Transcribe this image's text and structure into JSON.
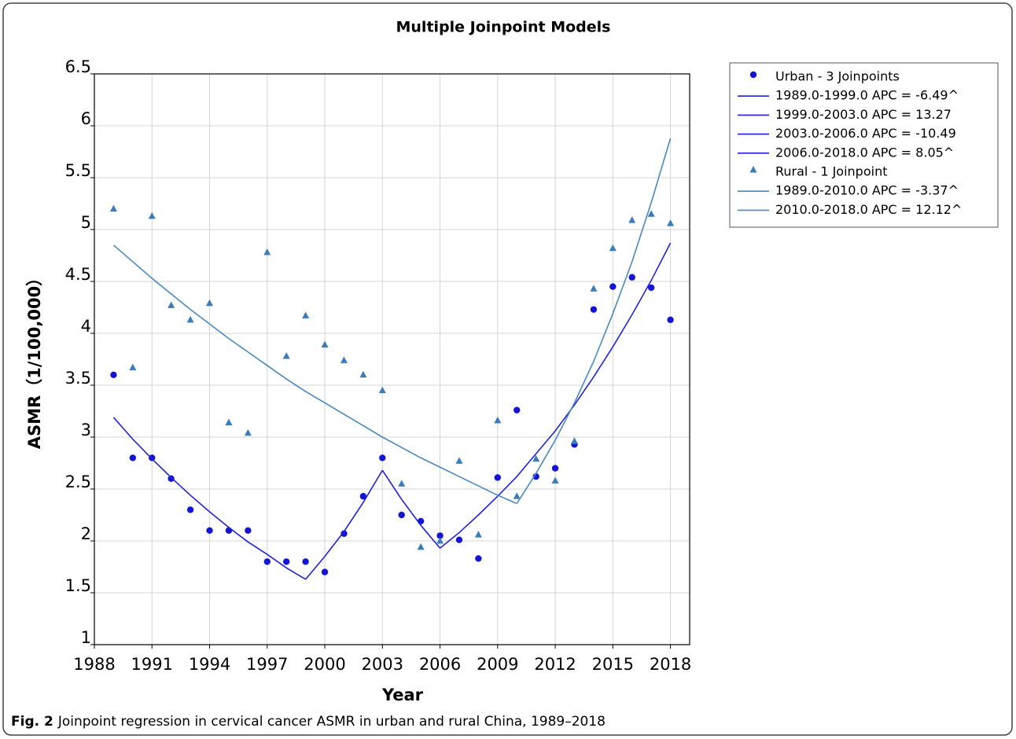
{
  "chart_data": {
    "type": "scatter",
    "title": "Multiple Joinpoint Models",
    "xlabel": "Year",
    "ylabel": "ASMR（1/100,000）",
    "caption_label": "Fig. 2",
    "caption": "Joinpoint regression in cervical cancer ASMR in urban and rural China, 1989–2018",
    "x": [
      1989,
      1990,
      1991,
      1992,
      1993,
      1994,
      1995,
      1996,
      1997,
      1998,
      1999,
      2000,
      2001,
      2002,
      2003,
      2004,
      2005,
      2006,
      2007,
      2008,
      2009,
      2010,
      2011,
      2012,
      2013,
      2014,
      2015,
      2016,
      2017,
      2018
    ],
    "xlim": [
      1988,
      2019
    ],
    "xticks": [
      1988,
      1991,
      1994,
      1997,
      2000,
      2003,
      2006,
      2009,
      2012,
      2015,
      2018
    ],
    "ylim": [
      1,
      6.5
    ],
    "yticks": [
      1,
      1.5,
      2,
      2.5,
      3,
      3.5,
      4,
      4.5,
      5,
      5.5,
      6,
      6.5
    ],
    "grid": true,
    "legend": "outside-right",
    "series": [
      {
        "name": "Urban - 3 Joinpoints",
        "marker": "circle",
        "color": "#1414d4",
        "values": [
          3.6,
          2.8,
          2.8,
          2.6,
          2.3,
          2.1,
          2.1,
          2.1,
          1.8,
          1.8,
          1.8,
          1.7,
          2.07,
          2.43,
          2.8,
          2.25,
          2.19,
          2.05,
          2.01,
          1.83,
          2.61,
          3.26,
          2.62,
          2.7,
          2.93,
          4.23,
          4.45,
          4.54,
          4.44,
          4.13
        ]
      },
      {
        "name": "1989.0-1999.0 APC = -6.49^",
        "marker": "line",
        "color": "#2020e0",
        "values": [
          3.19,
          2.98,
          2.79,
          2.61,
          2.44,
          2.28,
          2.13,
          1.99,
          1.87,
          1.74,
          1.63,
          null,
          null,
          null,
          null,
          null,
          null,
          null,
          null,
          null,
          null,
          null,
          null,
          null,
          null,
          null,
          null,
          null,
          null,
          null
        ]
      },
      {
        "name": "1999.0-2003.0 APC = 13.27",
        "marker": "line",
        "color": "#2020e0",
        "values": [
          null,
          null,
          null,
          null,
          null,
          null,
          null,
          null,
          null,
          null,
          1.63,
          1.85,
          2.09,
          2.37,
          2.68,
          null,
          null,
          null,
          null,
          null,
          null,
          null,
          null,
          null,
          null,
          null,
          null,
          null,
          null,
          null
        ]
      },
      {
        "name": "2003.0-2006.0 APC = -10.49",
        "marker": "line",
        "color": "#2020e0",
        "values": [
          null,
          null,
          null,
          null,
          null,
          null,
          null,
          null,
          null,
          null,
          null,
          null,
          null,
          null,
          2.68,
          2.4,
          2.15,
          1.93,
          null,
          null,
          null,
          null,
          null,
          null,
          null,
          null,
          null,
          null,
          null,
          null
        ]
      },
      {
        "name": "2006.0-2018.0 APC = 8.05^",
        "marker": "line",
        "color": "#2020e0",
        "values": [
          null,
          null,
          null,
          null,
          null,
          null,
          null,
          null,
          null,
          null,
          null,
          null,
          null,
          null,
          null,
          null,
          null,
          1.93,
          2.08,
          2.25,
          2.43,
          2.62,
          2.84,
          3.06,
          3.31,
          3.58,
          3.87,
          4.18,
          4.51,
          4.87
        ]
      },
      {
        "name": "Rural - 1 Joinpoint",
        "marker": "triangle",
        "color": "#3c7cb8",
        "values": [
          5.2,
          3.67,
          5.13,
          4.27,
          4.13,
          4.29,
          3.14,
          3.04,
          4.78,
          3.78,
          4.17,
          3.89,
          3.74,
          3.6,
          3.45,
          2.55,
          1.94,
          2.0,
          2.77,
          2.06,
          3.16,
          2.43,
          2.79,
          2.58,
          2.96,
          4.43,
          4.82,
          5.09,
          5.15,
          5.06
        ]
      },
      {
        "name": "1989.0-2010.0 APC = -3.37^",
        "marker": "line",
        "color": "#4a88c0",
        "values": [
          4.85,
          4.69,
          4.53,
          4.38,
          4.23,
          4.09,
          3.95,
          3.82,
          3.69,
          3.56,
          3.44,
          3.33,
          3.22,
          3.11,
          3.0,
          2.9,
          2.8,
          2.71,
          2.62,
          2.53,
          2.44,
          2.36,
          null,
          null,
          null,
          null,
          null,
          null,
          null,
          null
        ]
      },
      {
        "name": "2010.0-2018.0 APC = 12.12^",
        "marker": "line",
        "color": "#4a88c0",
        "values": [
          null,
          null,
          null,
          null,
          null,
          null,
          null,
          null,
          null,
          null,
          null,
          null,
          null,
          null,
          null,
          null,
          null,
          null,
          null,
          null,
          null,
          2.36,
          2.65,
          2.97,
          3.33,
          3.73,
          4.19,
          4.69,
          5.26,
          5.88
        ]
      }
    ]
  }
}
